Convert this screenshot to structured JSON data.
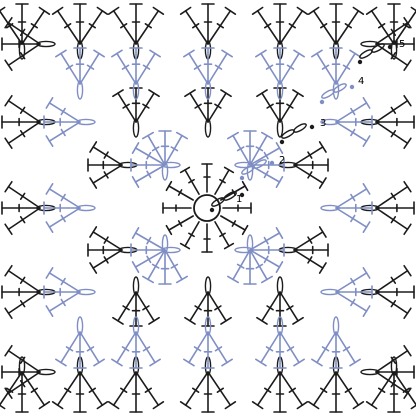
{
  "colors": {
    "black": "#1b1b1b",
    "blue": "#7f8ec4",
    "background": "#ffffff"
  },
  "row_labels": [
    "1",
    "2",
    "3",
    "4",
    "5"
  ],
  "icons": {
    "center": "magic-ring-icon",
    "stitch": "double-crochet-icon",
    "chain": "chain-oval-icon",
    "start": "start-dot-icon"
  }
}
